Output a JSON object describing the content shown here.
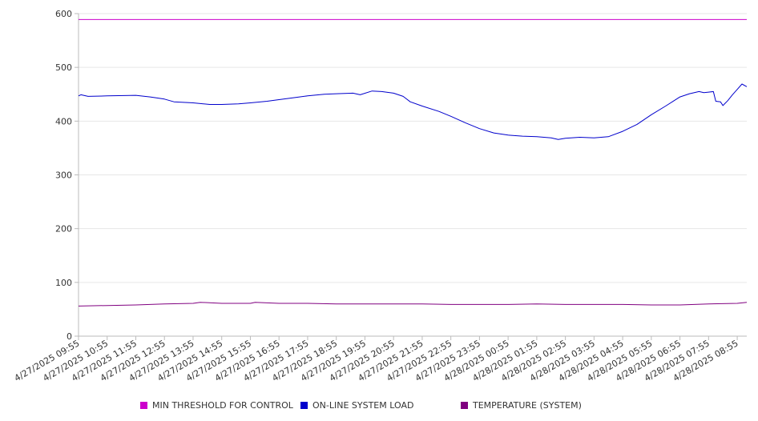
{
  "chart_data": {
    "type": "line",
    "title": "",
    "xlabel": "",
    "ylabel": "",
    "ylim": [
      0,
      600
    ],
    "yticks": [
      0,
      100,
      200,
      300,
      400,
      500,
      600
    ],
    "grid": true,
    "legend_position": "bottom",
    "xtick_labels": [
      "4/27/2025 09:55",
      "4/27/2025 10:55",
      "4/27/2025 11:55",
      "4/27/2025 12:55",
      "4/27/2025 13:55",
      "4/27/2025 14:55",
      "4/27/2025 15:55",
      "4/27/2025 16:55",
      "4/27/2025 17:55",
      "4/27/2025 18:55",
      "4/27/2025 19:55",
      "4/27/2025 20:55",
      "4/27/2025 21:55",
      "4/27/2025 22:55",
      "4/27/2025 23:55",
      "4/28/2025 00:55",
      "4/28/2025 01:55",
      "4/28/2025 02:55",
      "4/28/2025 03:55",
      "4/28/2025 04:55",
      "4/28/2025 05:55",
      "4/28/2025 06:55",
      "4/28/2025 07:55",
      "4/28/2025 08:55"
    ],
    "series": [
      {
        "name": "MIN THRESHOLD FOR CONTROL",
        "color": "#cc00cc",
        "points": [
          [
            "4/27/2025 09:55",
            589
          ],
          [
            "4/28/2025 09:15",
            589
          ]
        ]
      },
      {
        "name": "ON-LINE SYSTEM LOAD",
        "color": "#0000cc",
        "points": [
          [
            "4/27/2025 09:55",
            447
          ],
          [
            "4/27/2025 10:00",
            449
          ],
          [
            "4/27/2025 10:15",
            446
          ],
          [
            "4/27/2025 10:55",
            447
          ],
          [
            "4/27/2025 11:55",
            448
          ],
          [
            "4/27/2025 12:25",
            445
          ],
          [
            "4/27/2025 12:55",
            441
          ],
          [
            "4/27/2025 13:15",
            436
          ],
          [
            "4/27/2025 13:55",
            434
          ],
          [
            "4/27/2025 14:30",
            431
          ],
          [
            "4/27/2025 14:55",
            431
          ],
          [
            "4/27/2025 15:30",
            432
          ],
          [
            "4/27/2025 15:55",
            434
          ],
          [
            "4/27/2025 16:30",
            437
          ],
          [
            "4/27/2025 16:55",
            440
          ],
          [
            "4/27/2025 17:30",
            444
          ],
          [
            "4/27/2025 17:55",
            447
          ],
          [
            "4/27/2025 18:30",
            450
          ],
          [
            "4/27/2025 18:55",
            451
          ],
          [
            "4/27/2025 19:30",
            452
          ],
          [
            "4/27/2025 19:45",
            449
          ],
          [
            "4/27/2025 20:10",
            456
          ],
          [
            "4/27/2025 20:30",
            455
          ],
          [
            "4/27/2025 20:55",
            452
          ],
          [
            "4/27/2025 21:15",
            446
          ],
          [
            "4/27/2025 21:30",
            436
          ],
          [
            "4/27/2025 21:55",
            428
          ],
          [
            "4/27/2025 22:30",
            418
          ],
          [
            "4/27/2025 22:55",
            409
          ],
          [
            "4/27/2025 23:25",
            397
          ],
          [
            "4/27/2025 23:55",
            386
          ],
          [
            "4/28/2025 00:25",
            378
          ],
          [
            "4/28/2025 00:55",
            374
          ],
          [
            "4/28/2025 01:25",
            372
          ],
          [
            "4/28/2025 01:55",
            371
          ],
          [
            "4/28/2025 02:25",
            369
          ],
          [
            "4/28/2025 02:40",
            366
          ],
          [
            "4/28/2025 02:55",
            368
          ],
          [
            "4/28/2025 03:25",
            370
          ],
          [
            "4/28/2025 03:55",
            369
          ],
          [
            "4/28/2025 04:25",
            371
          ],
          [
            "4/28/2025 04:55",
            381
          ],
          [
            "4/28/2025 05:25",
            394
          ],
          [
            "4/28/2025 05:55",
            412
          ],
          [
            "4/28/2025 06:25",
            428
          ],
          [
            "4/28/2025 06:55",
            445
          ],
          [
            "4/28/2025 07:15",
            451
          ],
          [
            "4/28/2025 07:35",
            455
          ],
          [
            "4/28/2025 07:45",
            453
          ],
          [
            "4/28/2025 07:55",
            454
          ],
          [
            "4/28/2025 08:05",
            455
          ],
          [
            "4/28/2025 08:10",
            437
          ],
          [
            "4/28/2025 08:20",
            436
          ],
          [
            "4/28/2025 08:25",
            429
          ],
          [
            "4/28/2025 08:35",
            438
          ],
          [
            "4/28/2025 08:45",
            449
          ],
          [
            "4/28/2025 08:55",
            459
          ],
          [
            "4/28/2025 09:05",
            469
          ],
          [
            "4/28/2025 09:15",
            464
          ]
        ]
      },
      {
        "name": "TEMPERATURE (SYSTEM)",
        "color": "#800080",
        "points": [
          [
            "4/27/2025 09:55",
            56
          ],
          [
            "4/27/2025 10:55",
            57
          ],
          [
            "4/27/2025 11:55",
            58
          ],
          [
            "4/27/2025 12:55",
            60
          ],
          [
            "4/27/2025 13:55",
            61
          ],
          [
            "4/27/2025 14:10",
            63
          ],
          [
            "4/27/2025 14:55",
            61
          ],
          [
            "4/27/2025 15:55",
            61
          ],
          [
            "4/27/2025 16:05",
            63
          ],
          [
            "4/27/2025 16:55",
            61
          ],
          [
            "4/27/2025 17:55",
            61
          ],
          [
            "4/27/2025 18:55",
            60
          ],
          [
            "4/27/2025 19:55",
            60
          ],
          [
            "4/27/2025 20:55",
            60
          ],
          [
            "4/27/2025 21:55",
            60
          ],
          [
            "4/27/2025 22:55",
            59
          ],
          [
            "4/27/2025 23:55",
            59
          ],
          [
            "4/28/2025 00:55",
            59
          ],
          [
            "4/28/2025 01:55",
            60
          ],
          [
            "4/28/2025 02:55",
            59
          ],
          [
            "4/28/2025 03:55",
            59
          ],
          [
            "4/28/2025 04:55",
            59
          ],
          [
            "4/28/2025 05:55",
            58
          ],
          [
            "4/28/2025 06:55",
            58
          ],
          [
            "4/28/2025 07:55",
            60
          ],
          [
            "4/28/2025 08:55",
            61
          ],
          [
            "4/28/2025 09:15",
            63
          ]
        ]
      }
    ]
  }
}
